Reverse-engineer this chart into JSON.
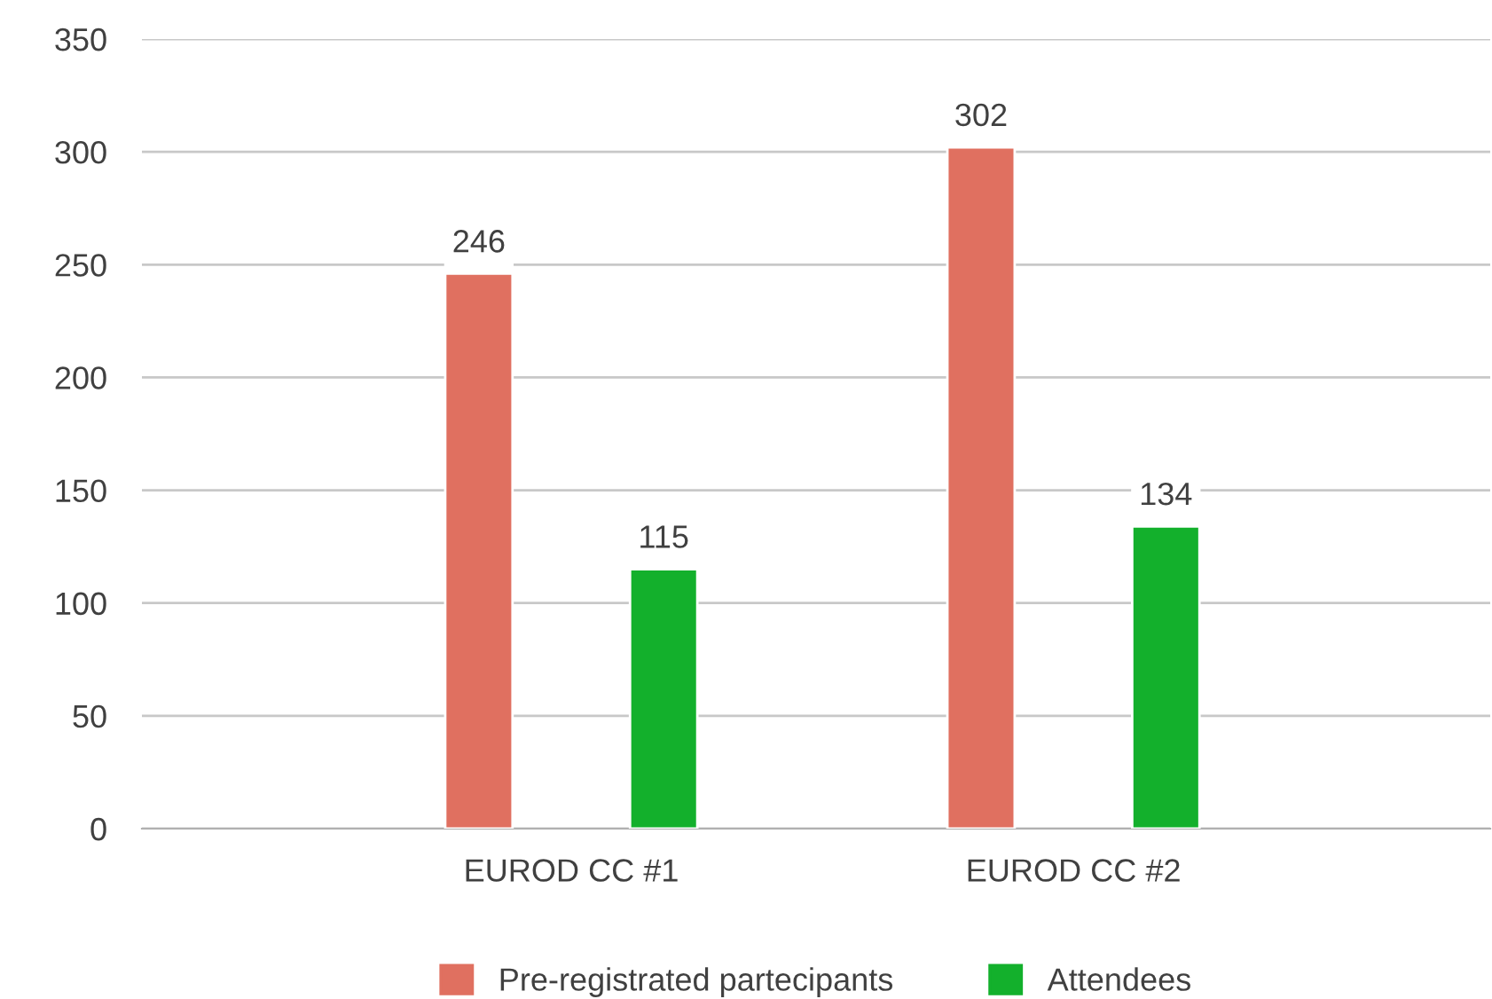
{
  "chart_data": {
    "type": "bar",
    "categories": [
      "EUROD CC #1",
      "EUROD CC #2"
    ],
    "series": [
      {
        "name": "Pre-registrated partecipants",
        "color": "#e07060",
        "values": [
          246,
          302
        ]
      },
      {
        "name": "Attendees",
        "color": "#13b02c",
        "values": [
          115,
          134
        ]
      }
    ],
    "ylim": [
      0,
      350
    ],
    "yticks": [
      0,
      50,
      100,
      150,
      200,
      250,
      300,
      350
    ],
    "grid": "y",
    "legend": "bottom",
    "data_labels": true
  }
}
